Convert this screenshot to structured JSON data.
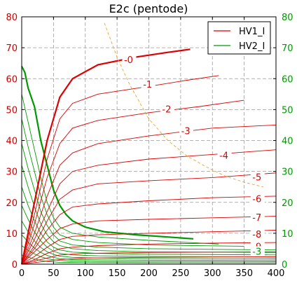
{
  "chart_data": {
    "type": "line",
    "title": "E2c (pentode)",
    "xlabel": "",
    "ylabel": "",
    "xlim": [
      0,
      400
    ],
    "ylim": [
      0,
      80
    ],
    "x_ticks": [
      0,
      50,
      100,
      150,
      200,
      250,
      300,
      350,
      400
    ],
    "y_ticks": [
      0,
      10,
      20,
      30,
      40,
      50,
      60,
      70,
      80
    ],
    "grid": true,
    "legend_position": "top-right",
    "colors": {
      "hv1": "#dd0000",
      "hv2": "#009900",
      "left_axis": "#cc0000",
      "right_axis": "#009900",
      "dissipation": "#f0a030"
    },
    "legend": [
      {
        "label": "HV1_I",
        "color": "#dd0000"
      },
      {
        "label": "HV2_I",
        "color": "#009900"
      }
    ],
    "hv1_curves": [
      {
        "label": "-0",
        "points": [
          [
            0,
            0
          ],
          [
            20,
            20
          ],
          [
            40,
            40
          ],
          [
            60,
            54
          ],
          [
            80,
            60
          ],
          [
            120,
            64.5
          ],
          [
            180,
            67
          ],
          [
            230,
            68.5
          ],
          [
            265,
            69.5
          ]
        ]
      },
      {
        "label": "-1",
        "points": [
          [
            0,
            0
          ],
          [
            20,
            16
          ],
          [
            40,
            34
          ],
          [
            60,
            47
          ],
          [
            80,
            52
          ],
          [
            120,
            55
          ],
          [
            200,
            57.5
          ],
          [
            260,
            59.5
          ],
          [
            310,
            61
          ]
        ]
      },
      {
        "label": "-2",
        "points": [
          [
            0,
            0
          ],
          [
            20,
            13
          ],
          [
            40,
            28
          ],
          [
            60,
            39
          ],
          [
            80,
            44
          ],
          [
            120,
            46.5
          ],
          [
            200,
            49
          ],
          [
            280,
            51
          ],
          [
            350,
            53
          ]
        ]
      },
      {
        "label": "-3",
        "points": [
          [
            0,
            0
          ],
          [
            20,
            10
          ],
          [
            40,
            22
          ],
          [
            60,
            32
          ],
          [
            80,
            36
          ],
          [
            120,
            39
          ],
          [
            200,
            41.5
          ],
          [
            300,
            44
          ],
          [
            400,
            45
          ]
        ]
      },
      {
        "label": "-4",
        "points": [
          [
            0,
            0
          ],
          [
            20,
            8
          ],
          [
            40,
            17
          ],
          [
            60,
            26
          ],
          [
            80,
            30
          ],
          [
            120,
            32
          ],
          [
            200,
            34
          ],
          [
            300,
            35.5
          ],
          [
            400,
            37
          ]
        ]
      },
      {
        "label": "-5",
        "points": [
          [
            0,
            0
          ],
          [
            20,
            6
          ],
          [
            40,
            14
          ],
          [
            60,
            21
          ],
          [
            80,
            24
          ],
          [
            120,
            26
          ],
          [
            200,
            27
          ],
          [
            300,
            28
          ],
          [
            400,
            29.5
          ]
        ]
      },
      {
        "label": "-6",
        "points": [
          [
            0,
            0
          ],
          [
            20,
            5
          ],
          [
            40,
            11
          ],
          [
            60,
            16
          ],
          [
            80,
            18.5
          ],
          [
            120,
            19.5
          ],
          [
            200,
            20.5
          ],
          [
            300,
            21.5
          ],
          [
            400,
            22
          ]
        ]
      },
      {
        "label": "-7",
        "points": [
          [
            0,
            0
          ],
          [
            20,
            4
          ],
          [
            40,
            8
          ],
          [
            60,
            11.5
          ],
          [
            80,
            13
          ],
          [
            120,
            14
          ],
          [
            200,
            14.5
          ],
          [
            300,
            15
          ],
          [
            400,
            15.5
          ]
        ]
      },
      {
        "label": "-8",
        "points": [
          [
            0,
            0
          ],
          [
            20,
            2.5
          ],
          [
            40,
            5.5
          ],
          [
            60,
            8
          ],
          [
            80,
            9
          ],
          [
            120,
            9.5
          ],
          [
            200,
            10
          ],
          [
            300,
            10.5
          ],
          [
            400,
            11
          ]
        ]
      },
      {
        "label": "-9",
        "points": [
          [
            0,
            0
          ],
          [
            20,
            1.5
          ],
          [
            40,
            3.5
          ],
          [
            60,
            5
          ],
          [
            80,
            5.5
          ],
          [
            120,
            6
          ],
          [
            200,
            6.5
          ],
          [
            300,
            6.8
          ],
          [
            400,
            7
          ]
        ]
      },
      {
        "label": "",
        "points": [
          [
            0,
            0
          ],
          [
            20,
            1
          ],
          [
            40,
            2
          ],
          [
            60,
            3
          ],
          [
            100,
            3.5
          ],
          [
            200,
            3.8
          ],
          [
            400,
            4
          ]
        ]
      },
      {
        "label": "",
        "points": [
          [
            0,
            0
          ],
          [
            20,
            0.5
          ],
          [
            40,
            1
          ],
          [
            60,
            1.5
          ],
          [
            100,
            2
          ],
          [
            200,
            2.2
          ],
          [
            400,
            2.4
          ]
        ]
      }
    ],
    "hv2_curves": [
      {
        "label": "",
        "points": [
          [
            0,
            64
          ],
          [
            5,
            62
          ],
          [
            10,
            57
          ],
          [
            20,
            51
          ],
          [
            30,
            40
          ],
          [
            40,
            32
          ],
          [
            50,
            24
          ],
          [
            60,
            19
          ],
          [
            70,
            16
          ],
          [
            80,
            14
          ],
          [
            100,
            12
          ],
          [
            130,
            10.5
          ],
          [
            180,
            9.5
          ],
          [
            230,
            8.8
          ],
          [
            270,
            8.2
          ]
        ]
      },
      {
        "label": "",
        "points": [
          [
            0,
            55
          ],
          [
            10,
            46
          ],
          [
            20,
            37
          ],
          [
            30,
            28
          ],
          [
            40,
            20
          ],
          [
            50,
            15
          ],
          [
            60,
            12
          ],
          [
            80,
            10
          ],
          [
            120,
            8.8
          ],
          [
            200,
            7.7
          ],
          [
            310,
            6.5
          ]
        ]
      },
      {
        "label": "",
        "points": [
          [
            0,
            47
          ],
          [
            10,
            38
          ],
          [
            20,
            30
          ],
          [
            30,
            22
          ],
          [
            40,
            16
          ],
          [
            50,
            12
          ],
          [
            60,
            9.5
          ],
          [
            80,
            8
          ],
          [
            120,
            7
          ],
          [
            200,
            6.2
          ],
          [
            350,
            5.8
          ]
        ]
      },
      {
        "label": "",
        "points": [
          [
            0,
            39
          ],
          [
            10,
            31
          ],
          [
            20,
            24
          ],
          [
            30,
            17
          ],
          [
            40,
            12.5
          ],
          [
            50,
            9.5
          ],
          [
            60,
            7.5
          ],
          [
            80,
            6.2
          ],
          [
            120,
            5.5
          ],
          [
            200,
            5
          ],
          [
            400,
            4.6
          ]
        ]
      },
      {
        "label": "",
        "points": [
          [
            0,
            32
          ],
          [
            10,
            25
          ],
          [
            20,
            18.5
          ],
          [
            30,
            13
          ],
          [
            40,
            9.5
          ],
          [
            50,
            7.2
          ],
          [
            60,
            6
          ],
          [
            80,
            5
          ],
          [
            120,
            4.4
          ],
          [
            200,
            4
          ],
          [
            400,
            3.8
          ]
        ]
      },
      {
        "label": "",
        "points": [
          [
            0,
            25
          ],
          [
            10,
            19
          ],
          [
            20,
            14
          ],
          [
            30,
            10
          ],
          [
            40,
            7.2
          ],
          [
            50,
            5.5
          ],
          [
            60,
            4.6
          ],
          [
            80,
            3.9
          ],
          [
            120,
            3.5
          ],
          [
            200,
            3.2
          ],
          [
            400,
            3
          ]
        ]
      },
      {
        "label": "",
        "points": [
          [
            0,
            19
          ],
          [
            10,
            14.5
          ],
          [
            20,
            10.5
          ],
          [
            30,
            7.5
          ],
          [
            40,
            5.5
          ],
          [
            50,
            4.2
          ],
          [
            60,
            3.5
          ],
          [
            80,
            3
          ],
          [
            120,
            2.7
          ],
          [
            200,
            2.5
          ],
          [
            400,
            2.3
          ]
        ]
      },
      {
        "label": "",
        "points": [
          [
            0,
            14
          ],
          [
            10,
            10.5
          ],
          [
            20,
            7.5
          ],
          [
            30,
            5.4
          ],
          [
            40,
            4
          ],
          [
            50,
            3.2
          ],
          [
            60,
            2.6
          ],
          [
            80,
            2.2
          ],
          [
            120,
            2
          ],
          [
            200,
            1.8
          ],
          [
            400,
            1.7
          ]
        ]
      },
      {
        "label": "",
        "points": [
          [
            0,
            9.5
          ],
          [
            10,
            7.2
          ],
          [
            20,
            5.2
          ],
          [
            30,
            3.8
          ],
          [
            40,
            2.8
          ],
          [
            50,
            2.2
          ],
          [
            60,
            1.8
          ],
          [
            80,
            1.5
          ],
          [
            120,
            1.4
          ],
          [
            200,
            1.3
          ],
          [
            400,
            1.2
          ]
        ]
      },
      {
        "label": "",
        "points": [
          [
            0,
            6
          ],
          [
            10,
            4.5
          ],
          [
            20,
            3.3
          ],
          [
            30,
            2.4
          ],
          [
            40,
            1.8
          ],
          [
            50,
            1.4
          ],
          [
            60,
            1.2
          ],
          [
            80,
            1
          ],
          [
            120,
            0.9
          ],
          [
            200,
            0.85
          ],
          [
            400,
            0.8
          ]
        ]
      },
      {
        "label": "",
        "points": [
          [
            0,
            3
          ],
          [
            10,
            2.3
          ],
          [
            20,
            1.7
          ],
          [
            30,
            1.2
          ],
          [
            40,
            0.9
          ],
          [
            60,
            0.6
          ],
          [
            100,
            0.5
          ],
          [
            200,
            0.45
          ],
          [
            400,
            0.4
          ]
        ]
      }
    ],
    "dissipation_limit": {
      "label": "",
      "points": [
        [
          130,
          78
        ],
        [
          150,
          67
        ],
        [
          170,
          58
        ],
        [
          200,
          47
        ],
        [
          230,
          40
        ],
        [
          260,
          35
        ],
        [
          290,
          31.5
        ],
        [
          320,
          28.5
        ],
        [
          350,
          26.5
        ],
        [
          380,
          25
        ]
      ]
    },
    "annotations": [
      {
        "text": "-0",
        "x": 168,
        "y": 66,
        "color": "#dd0000"
      },
      {
        "text": "-1",
        "x": 198,
        "y": 58,
        "color": "#dd0000"
      },
      {
        "text": "-2",
        "x": 228,
        "y": 50,
        "color": "#dd0000"
      },
      {
        "text": "-3",
        "x": 258,
        "y": 43,
        "color": "#dd0000"
      },
      {
        "text": "-4",
        "x": 318,
        "y": 35,
        "color": "#dd0000"
      },
      {
        "text": "-5",
        "x": 370,
        "y": 28,
        "color": "#dd0000"
      },
      {
        "text": "-6",
        "x": 370,
        "y": 21,
        "color": "#dd0000"
      },
      {
        "text": "-7",
        "x": 370,
        "y": 15,
        "color": "#dd0000"
      },
      {
        "text": "-8",
        "x": 370,
        "y": 9.5,
        "color": "#dd0000"
      },
      {
        "text": "-9",
        "x": 370,
        "y": 5.5,
        "color": "#dd0000"
      },
      {
        "text": "-3",
        "x": 370,
        "y": 4,
        "color": "#009900"
      }
    ]
  }
}
